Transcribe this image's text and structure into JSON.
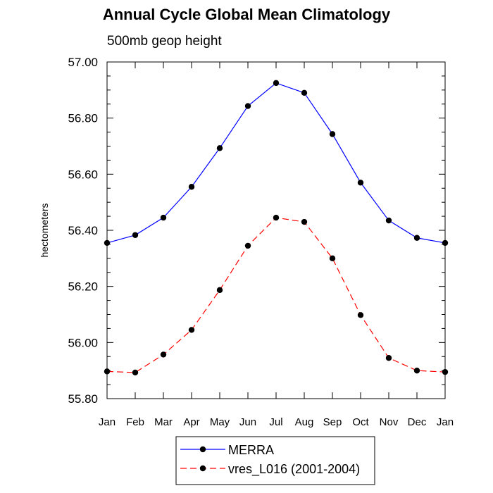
{
  "chart_data": {
    "type": "line",
    "title": "Annual Cycle Global Mean Climatology",
    "subtitle": "500mb geop height",
    "xlabel": "",
    "ylabel": "hectometers",
    "categories": [
      "Jan",
      "Feb",
      "Mar",
      "Apr",
      "May",
      "Jun",
      "Jul",
      "Aug",
      "Sep",
      "Oct",
      "Nov",
      "Dec",
      "Jan"
    ],
    "ylim": [
      55.8,
      57.0
    ],
    "yticks": [
      "55.80",
      "56.00",
      "56.20",
      "56.40",
      "56.60",
      "56.80",
      "57.00"
    ],
    "grid": false,
    "legend_position": "bottom-center",
    "series": [
      {
        "name": "MERRA",
        "color": "#0000ff",
        "dash": "solid",
        "marker": "circle",
        "values": [
          56.355,
          56.383,
          56.445,
          56.555,
          56.693,
          56.843,
          56.925,
          56.89,
          56.743,
          56.57,
          56.435,
          56.373,
          56.355
        ]
      },
      {
        "name": "vres_L016 (2001-2004)",
        "color": "#ff0000",
        "dash": "dashed",
        "marker": "circle",
        "values": [
          55.897,
          55.893,
          55.957,
          56.045,
          56.187,
          56.345,
          56.445,
          56.43,
          56.3,
          56.098,
          55.945,
          55.9,
          55.895
        ]
      }
    ]
  }
}
